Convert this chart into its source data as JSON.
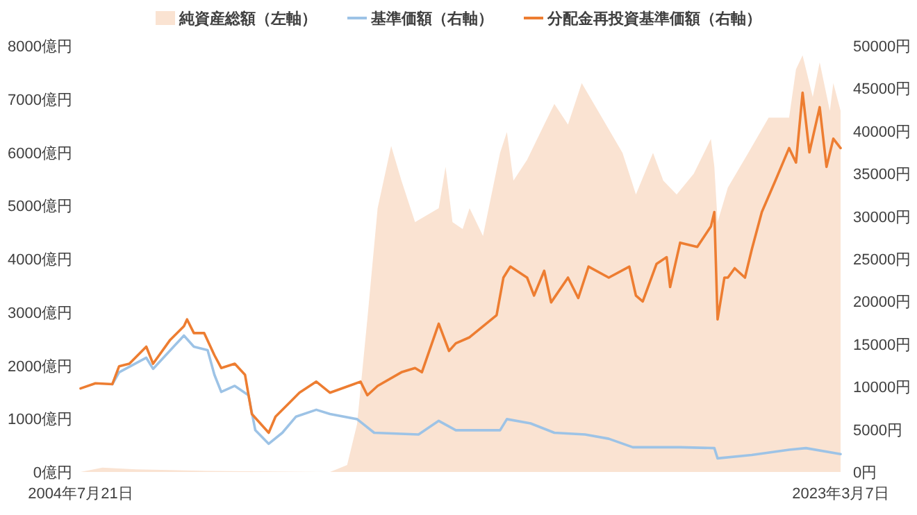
{
  "chart_data": {
    "type": "line",
    "legend": "top",
    "grid": false,
    "xlim": [
      "2004-07-21",
      "2023-03-07"
    ],
    "xticks": [
      {
        "value": "2004-07-21",
        "label": "2004年7月21日"
      },
      {
        "value": "2023-03-07",
        "label": "2023年3月7日"
      }
    ],
    "ylim": [
      0,
      8000
    ],
    "yticks": [
      {
        "value": 0,
        "label": "0億円"
      },
      {
        "value": 1000,
        "label": "1000億円"
      },
      {
        "value": 2000,
        "label": "2000億円"
      },
      {
        "value": 3000,
        "label": "3000億円"
      },
      {
        "value": 4000,
        "label": "4000億円"
      },
      {
        "value": 5000,
        "label": "5000億円"
      },
      {
        "value": 6000,
        "label": "6000億円"
      },
      {
        "value": 7000,
        "label": "7000億円"
      },
      {
        "value": 8000,
        "label": "8000億円"
      }
    ],
    "y2lim": [
      0,
      50000
    ],
    "y2ticks": [
      {
        "value": 0,
        "label": "0円"
      },
      {
        "value": 5000,
        "label": "5000円"
      },
      {
        "value": 10000,
        "label": "10000円"
      },
      {
        "value": 15000,
        "label": "15000円"
      },
      {
        "value": 20000,
        "label": "20000円"
      },
      {
        "value": 25000,
        "label": "25000円"
      },
      {
        "value": 30000,
        "label": "30000円"
      },
      {
        "value": 35000,
        "label": "35000円"
      },
      {
        "value": 40000,
        "label": "40000円"
      },
      {
        "value": 45000,
        "label": "45000円"
      },
      {
        "value": 50000,
        "label": "50000円"
      }
    ],
    "series": [
      {
        "name": "純資産総額（左軸）",
        "type": "area",
        "color": "#fae3d2",
        "x": [
          "2004-07-21",
          "2005-02",
          "2005-12",
          "2007-09",
          "2010-09",
          "2011-02",
          "2011-05",
          "2011-08",
          "2011-11",
          "2012-03",
          "2012-06",
          "2012-10",
          "2013-05",
          "2013-07",
          "2013-09",
          "2013-12",
          "2014-02",
          "2014-06",
          "2014-11",
          "2015-01",
          "2015-03",
          "2015-07",
          "2015-12",
          "2016-03",
          "2016-07",
          "2016-11",
          "2017-05",
          "2017-11",
          "2018-03",
          "2018-08",
          "2018-11",
          "2019-03",
          "2019-08",
          "2020-01",
          "2020-02",
          "2020-03",
          "2020-06",
          "2020-12",
          "2021-06",
          "2021-12",
          "2022-02",
          "2022-04",
          "2022-07",
          "2022-09",
          "2022-12",
          "2023-01",
          "2023-03-07"
        ],
        "values": [
          0,
          80,
          50,
          20,
          0,
          130,
          900,
          2870,
          4950,
          6120,
          5470,
          4690,
          4950,
          5730,
          4690,
          4560,
          4950,
          4430,
          5990,
          6380,
          5470,
          5860,
          6520,
          6910,
          6520,
          7300,
          6650,
          5990,
          5210,
          5990,
          5470,
          5210,
          5600,
          6250,
          5730,
          4690,
          5340,
          5990,
          6650,
          6650,
          7560,
          7820,
          7040,
          7690,
          6780,
          7300,
          6780
        ]
      },
      {
        "name": "基準価額（右軸）",
        "type": "line",
        "axis": "y2",
        "color": "#9dc3e6",
        "x": [
          "2005-05",
          "2005-07",
          "2006-03",
          "2006-05",
          "2007-02",
          "2007-05",
          "2007-09",
          "2007-11",
          "2008-01",
          "2008-05",
          "2008-09",
          "2008-11",
          "2009-03",
          "2009-07",
          "2009-11",
          "2010-05",
          "2010-09",
          "2011-05",
          "2011-10",
          "2012-11",
          "2013-05",
          "2013-10",
          "2014-11",
          "2015-01",
          "2015-08",
          "2016-03",
          "2016-12",
          "2017-07",
          "2018-02",
          "2019-04",
          "2020-02",
          "2020-03",
          "2021-01",
          "2021-12",
          "2022-05",
          "2023-03-07"
        ],
        "values": [
          10300,
          11700,
          13400,
          12100,
          16000,
          14700,
          14300,
          11400,
          9400,
          10100,
          9000,
          4900,
          3300,
          4600,
          6500,
          7300,
          6800,
          6200,
          4600,
          4400,
          6000,
          4900,
          4900,
          6200,
          5700,
          4600,
          4400,
          3900,
          2900,
          2900,
          2800,
          1600,
          2000,
          2600,
          2800,
          2100
        ]
      },
      {
        "name": "分配金再投資基準価額（右軸）",
        "type": "line",
        "axis": "y2",
        "color": "#ed7d31",
        "x": [
          "2004-07-21",
          "2004-12",
          "2005-05",
          "2005-07",
          "2005-10",
          "2006-03",
          "2006-05",
          "2006-10",
          "2007-02",
          "2007-03",
          "2007-05",
          "2007-08",
          "2007-11",
          "2008-01",
          "2008-05",
          "2008-08",
          "2008-10",
          "2009-03",
          "2009-05",
          "2009-09",
          "2009-12",
          "2010-05",
          "2010-09",
          "2011-04",
          "2011-06",
          "2011-08",
          "2011-11",
          "2012-06",
          "2012-10",
          "2012-12",
          "2013-05",
          "2013-08",
          "2013-10",
          "2014-02",
          "2014-10",
          "2014-12",
          "2015-02",
          "2015-07",
          "2015-09",
          "2015-12",
          "2016-02",
          "2016-07",
          "2016-10",
          "2017-01",
          "2017-07",
          "2018-01",
          "2018-03",
          "2018-05",
          "2018-09",
          "2018-12",
          "2019-01",
          "2019-04",
          "2019-09",
          "2020-01",
          "2020-02",
          "2020-03",
          "2020-05",
          "2020-06",
          "2020-08",
          "2020-11",
          "2021-01",
          "2021-04",
          "2021-08",
          "2021-12",
          "2022-02",
          "2022-04",
          "2022-06",
          "2022-09",
          "2022-11",
          "2023-01",
          "2023-03-07"
        ],
        "values": [
          9800,
          10400,
          10300,
          12400,
          12700,
          14700,
          12700,
          15500,
          17100,
          17900,
          16300,
          16300,
          13700,
          12200,
          12700,
          11400,
          6800,
          4600,
          6500,
          8100,
          9300,
          10600,
          9300,
          10300,
          10600,
          9000,
          10100,
          11700,
          12200,
          11700,
          17400,
          14200,
          15100,
          15800,
          18400,
          22800,
          24100,
          22800,
          20700,
          23600,
          19900,
          22800,
          20400,
          24100,
          22800,
          24100,
          20700,
          20000,
          24400,
          25200,
          21700,
          26900,
          26400,
          28800,
          30500,
          17900,
          22800,
          22800,
          23900,
          22800,
          26100,
          30500,
          34200,
          38000,
          36300,
          44500,
          37500,
          42800,
          35800,
          39100,
          38000
        ]
      }
    ]
  }
}
